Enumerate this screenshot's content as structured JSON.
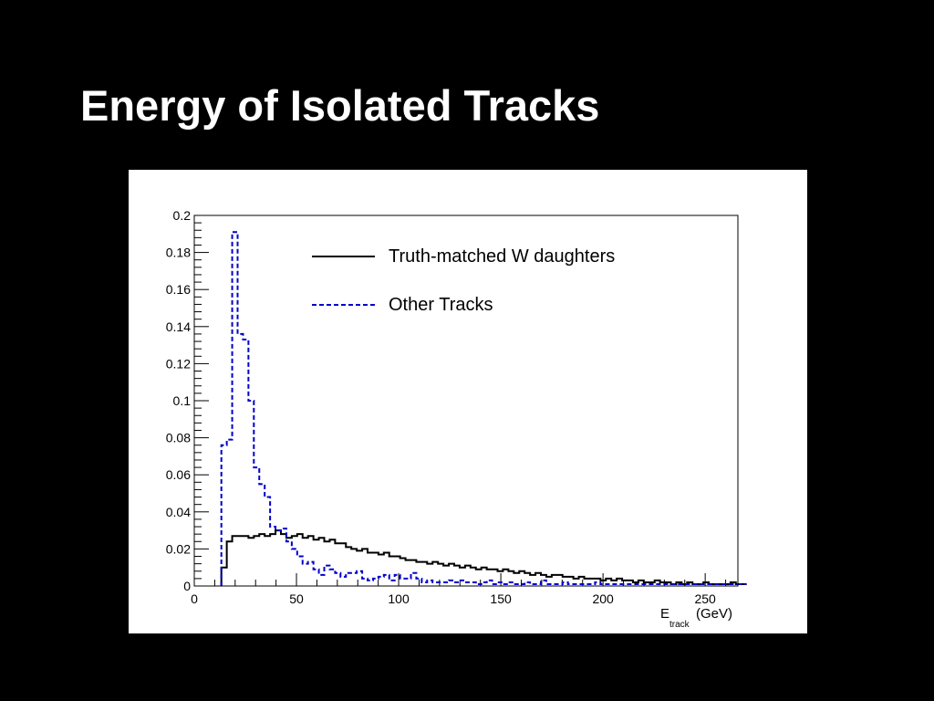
{
  "slide": {
    "title": "Energy of Isolated Tracks"
  },
  "colors": {
    "background": "#000000",
    "panel": "#ffffff",
    "series_1": "#000000",
    "series_2": "#0000cc"
  },
  "chart_data": {
    "type": "histogram",
    "xlabel": "E",
    "xlabel_subscript": "track",
    "xlabel_unit": "(GeV)",
    "ylabel": "",
    "xlim": [
      0,
      266
    ],
    "ylim": [
      0,
      0.2
    ],
    "bin_width": 2.65,
    "x_start": 13.25,
    "x_ticks": [
      "0",
      "50",
      "100",
      "150",
      "200",
      "250"
    ],
    "y_ticks": [
      "0",
      "0.02",
      "0.04",
      "0.06",
      "0.08",
      "0.1",
      "0.12",
      "0.14",
      "0.16",
      "0.18",
      "0.2"
    ],
    "legend_position": "top-right",
    "series": [
      {
        "name": "Truth-matched W daughters",
        "style": "solid",
        "values": [
          0.01,
          0.024,
          0.027,
          0.027,
          0.027,
          0.026,
          0.027,
          0.028,
          0.027,
          0.028,
          0.03,
          0.028,
          0.026,
          0.027,
          0.028,
          0.026,
          0.027,
          0.025,
          0.026,
          0.024,
          0.025,
          0.023,
          0.023,
          0.021,
          0.02,
          0.019,
          0.02,
          0.018,
          0.018,
          0.017,
          0.018,
          0.016,
          0.016,
          0.015,
          0.014,
          0.014,
          0.013,
          0.013,
          0.012,
          0.013,
          0.012,
          0.011,
          0.012,
          0.011,
          0.01,
          0.011,
          0.01,
          0.009,
          0.01,
          0.009,
          0.009,
          0.008,
          0.009,
          0.008,
          0.007,
          0.008,
          0.007,
          0.006,
          0.007,
          0.006,
          0.005,
          0.006,
          0.006,
          0.005,
          0.005,
          0.004,
          0.005,
          0.004,
          0.004,
          0.004,
          0.003,
          0.004,
          0.003,
          0.004,
          0.003,
          0.003,
          0.002,
          0.003,
          0.002,
          0.002,
          0.003,
          0.002,
          0.002,
          0.001,
          0.002,
          0.001,
          0.002,
          0.001,
          0.001,
          0.002,
          0.001,
          0.001,
          0.001,
          0.001,
          0.002,
          0.001,
          0.001,
          0.001
        ]
      },
      {
        "name": "Other Tracks",
        "style": "dashed",
        "values": [
          0.076,
          0.079,
          0.191,
          0.136,
          0.133,
          0.1,
          0.064,
          0.055,
          0.048,
          0.032,
          0.03,
          0.031,
          0.024,
          0.02,
          0.016,
          0.012,
          0.013,
          0.009,
          0.006,
          0.011,
          0.009,
          0.007,
          0.005,
          0.007,
          0.007,
          0.008,
          0.004,
          0.003,
          0.004,
          0.005,
          0.006,
          0.003,
          0.006,
          0.004,
          0.004,
          0.007,
          0.004,
          0.002,
          0.003,
          0.002,
          0.002,
          0.002,
          0.003,
          0.002,
          0.003,
          0.002,
          0.002,
          0.001,
          0.002,
          0.003,
          0.001,
          0.002,
          0.001,
          0.002,
          0.001,
          0.001,
          0.002,
          0.001,
          0.001,
          0.003,
          0.001,
          0.001,
          0.001,
          0.002,
          0.001,
          0.001,
          0.001,
          0.001,
          0.001,
          0.002,
          0.001,
          0.001,
          0.001,
          0.001,
          0.001,
          0.001,
          0.001,
          0.001,
          0.001,
          0.001,
          0.001,
          0.001,
          0.001,
          0.001,
          0.001,
          0.001,
          0.001,
          0.001,
          0.001,
          0.001,
          0.001,
          0.001,
          0.001,
          0.001,
          0.001,
          0.001,
          0.001,
          0.001
        ]
      }
    ]
  }
}
